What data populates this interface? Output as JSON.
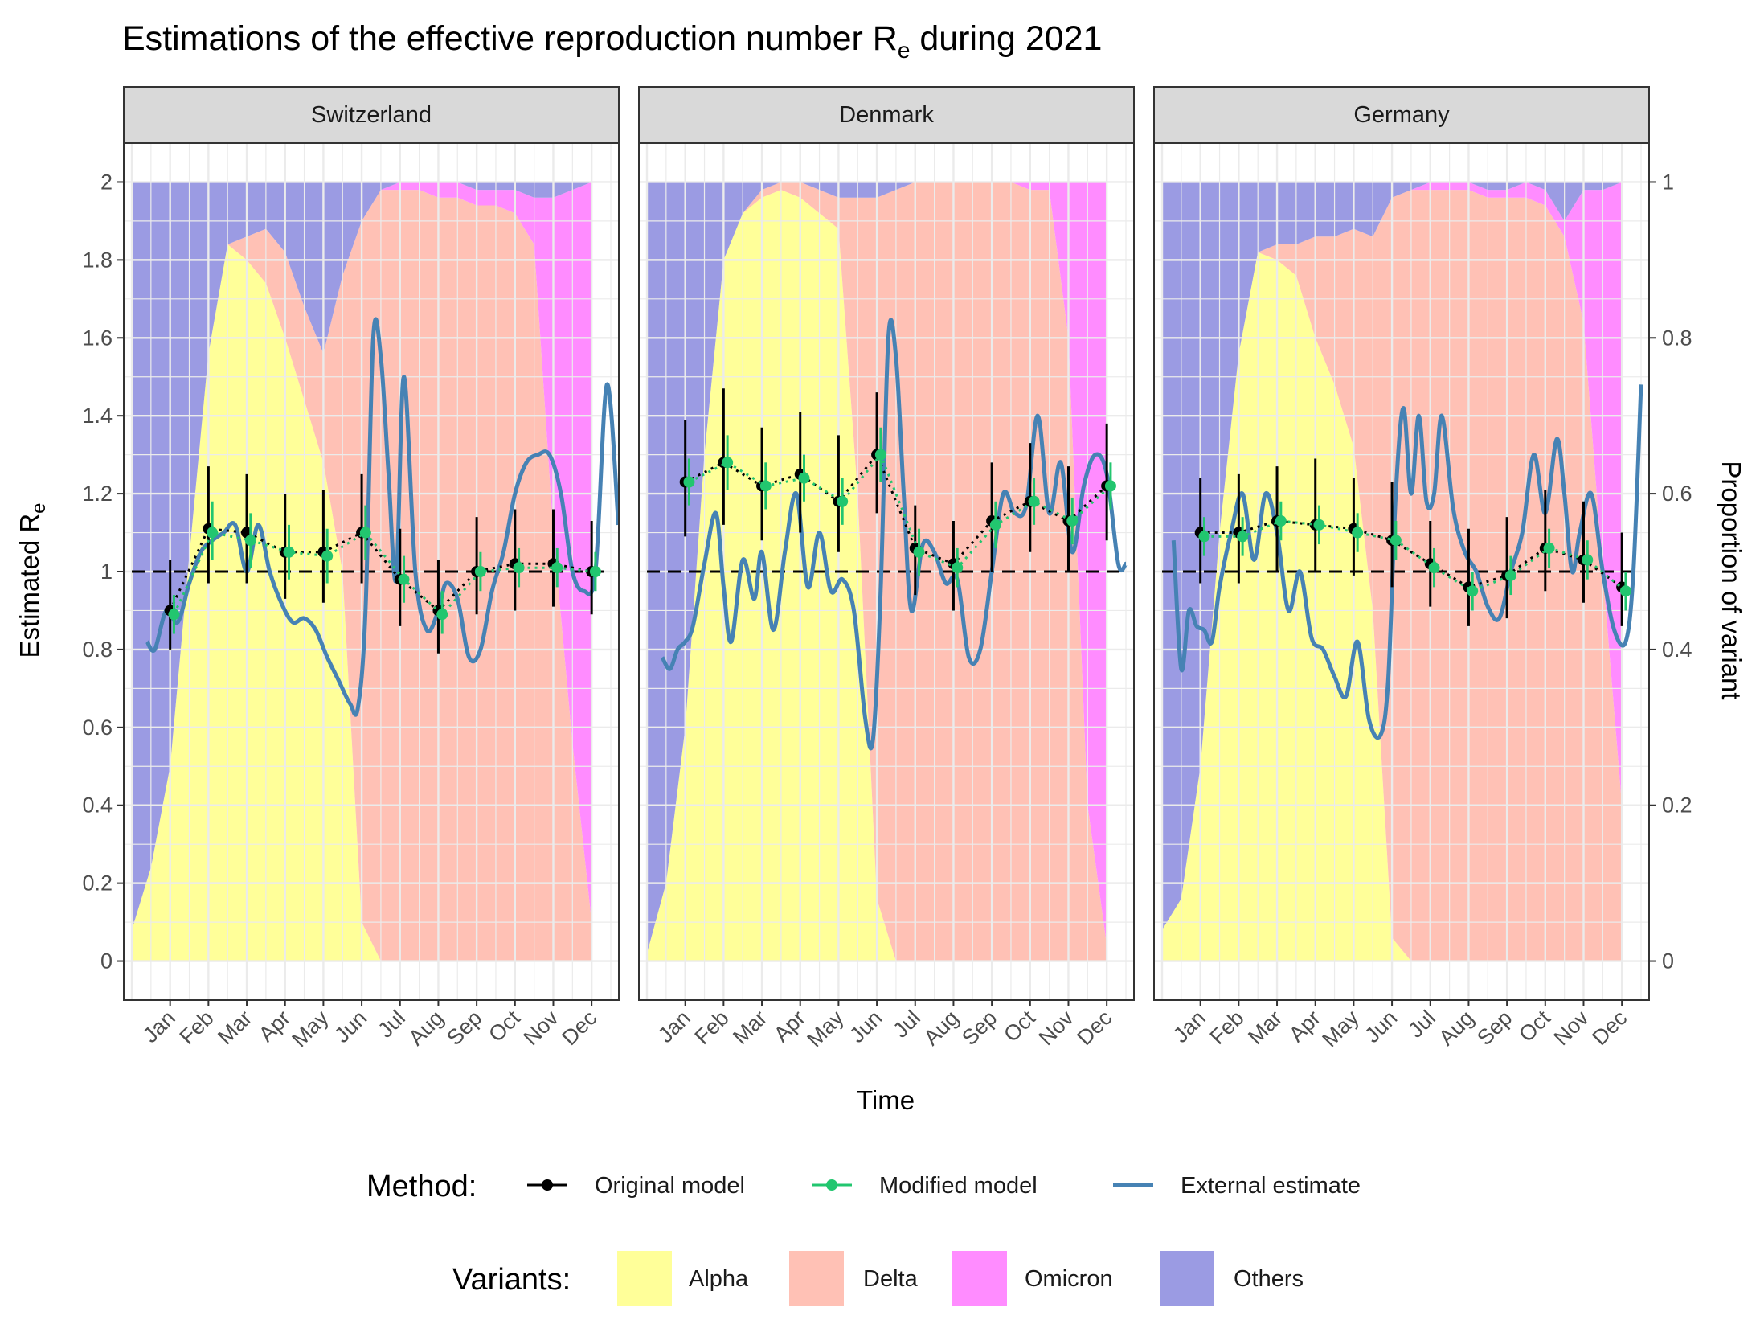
{
  "chart_data": {
    "type": "line",
    "title_main": "Estimations of the effective reproduction number R",
    "title_sub": "e",
    "title_tail": " during 2021",
    "xlabel": "Time",
    "ylabel_main": "Estimated R",
    "ylabel_sub": "e",
    "y2label": "Proportion of variant",
    "ylim": [
      -0.1,
      2.1
    ],
    "yticks": [
      "0",
      "0.2",
      "0.4",
      "0.6",
      "0.8",
      "1",
      "1.2",
      "1.4",
      "1.6",
      "1.8",
      "2"
    ],
    "y2ticks": [
      "0",
      "0.2",
      "0.4",
      "0.6",
      "0.8",
      "1"
    ],
    "x_months": [
      "Jan",
      "Feb",
      "Mar",
      "Apr",
      "May",
      "Jun",
      "Jul",
      "Aug",
      "Sep",
      "Oct",
      "Nov",
      "Dec"
    ],
    "reference_line": 1,
    "grid": true,
    "legend_method": {
      "title": "Method:",
      "items": [
        {
          "label": "Original model",
          "color": "#000000"
        },
        {
          "label": "Modified model",
          "color": "#22c66f"
        },
        {
          "label": "External estimate",
          "color": "#4682b4"
        }
      ]
    },
    "legend_variants": {
      "title": "Variants:",
      "items": [
        {
          "label": "Alpha",
          "color": "#ffff99"
        },
        {
          "label": "Delta",
          "color": "#ffc1b5"
        },
        {
          "label": "Omicron",
          "color": "#ff8cff"
        },
        {
          "label": "Others",
          "color": "#9b9be3"
        }
      ]
    },
    "panels": [
      {
        "name": "Switzerland",
        "variants": {
          "t": [
            0,
            0.5,
            1,
            1.5,
            2,
            2.5,
            3,
            3.5,
            4,
            4.5,
            5,
            5.5,
            6,
            6.5,
            7,
            7.5,
            8,
            8.5,
            9,
            9.5,
            10,
            10.5,
            11,
            11.5,
            12
          ],
          "alpha": [
            0.04,
            0.12,
            0.25,
            0.52,
            0.78,
            0.92,
            0.9,
            0.87,
            0.8,
            0.72,
            0.64,
            0.5,
            0.05,
            0,
            0,
            0,
            0,
            0,
            0,
            0,
            0,
            0,
            0,
            0,
            0
          ],
          "delta": [
            0,
            0,
            0,
            0,
            0,
            0,
            0.03,
            0.07,
            0.11,
            0.12,
            0.14,
            0.38,
            0.9,
            0.99,
            0.99,
            0.99,
            0.98,
            0.98,
            0.97,
            0.97,
            0.96,
            0.92,
            0.55,
            0.28,
            0.05
          ],
          "omicron": [
            0,
            0,
            0,
            0,
            0,
            0,
            0,
            0,
            0,
            0,
            0,
            0,
            0,
            0,
            0.01,
            0.02,
            0.02,
            0.02,
            0.02,
            0.02,
            0.03,
            0.06,
            0.43,
            0.71,
            0.95
          ]
        },
        "original": {
          "x": [
            1,
            2,
            3,
            4,
            5,
            6,
            7,
            8,
            9,
            10,
            11,
            12
          ],
          "y": [
            0.9,
            1.11,
            1.1,
            1.05,
            1.05,
            1.1,
            0.98,
            0.9,
            1.0,
            1.02,
            1.02,
            1.0
          ],
          "lo": [
            0.8,
            0.97,
            0.97,
            0.93,
            0.92,
            0.97,
            0.86,
            0.79,
            0.89,
            0.9,
            0.91,
            0.89
          ],
          "hi": [
            1.03,
            1.27,
            1.25,
            1.2,
            1.21,
            1.25,
            1.11,
            1.03,
            1.14,
            1.16,
            1.16,
            1.13
          ]
        },
        "modified": {
          "x": [
            1.1,
            2.1,
            3.1,
            4.1,
            5.1,
            6.1,
            7.1,
            8.1,
            9.1,
            10.1,
            11.1,
            12.1
          ],
          "y": [
            0.89,
            1.1,
            1.08,
            1.05,
            1.04,
            1.1,
            0.98,
            0.89,
            1.0,
            1.01,
            1.01,
            1.0
          ],
          "lo": [
            0.84,
            1.03,
            1.01,
            0.98,
            0.97,
            1.03,
            0.92,
            0.84,
            0.95,
            0.96,
            0.96,
            0.95
          ],
          "hi": [
            0.94,
            1.18,
            1.15,
            1.12,
            1.11,
            1.17,
            1.04,
            0.95,
            1.05,
            1.06,
            1.06,
            1.05
          ]
        },
        "external": {
          "x": [
            0.4,
            0.6,
            0.9,
            1.2,
            1.5,
            1.8,
            2.1,
            2.4,
            2.7,
            3.0,
            3.3,
            3.6,
            3.9,
            4.2,
            4.5,
            4.8,
            5.1,
            5.4,
            5.7,
            5.9,
            6.1,
            6.3,
            6.5,
            6.7,
            6.9,
            7.1,
            7.4,
            7.7,
            8.0,
            8.2,
            8.5,
            8.8,
            9.1,
            9.4,
            9.7,
            10.0,
            10.3,
            10.6,
            10.9,
            11.2,
            11.5,
            11.8,
            12.1,
            12.4,
            12.7
          ],
          "y": [
            0.82,
            0.8,
            0.9,
            0.87,
            0.97,
            1.05,
            1.08,
            1.1,
            1.12,
            1.0,
            1.12,
            1.0,
            0.92,
            0.87,
            0.88,
            0.85,
            0.78,
            0.72,
            0.66,
            0.65,
            0.9,
            1.6,
            1.55,
            1.25,
            0.98,
            1.5,
            1.0,
            0.85,
            0.9,
            0.97,
            0.93,
            0.78,
            0.8,
            0.95,
            1.05,
            1.2,
            1.28,
            1.3,
            1.3,
            1.2,
            1.0,
            0.95,
            1.0,
            1.48,
            1.12
          ]
        }
      },
      {
        "name": "Denmark",
        "variants": {
          "t": [
            0,
            0.5,
            1,
            1.5,
            2,
            2.5,
            3,
            3.5,
            4,
            4.5,
            5,
            5.5,
            6,
            6.5,
            7,
            7.5,
            8,
            8.5,
            9,
            9.5,
            10,
            10.5,
            11,
            11.5,
            12
          ],
          "alpha": [
            0.01,
            0.1,
            0.3,
            0.65,
            0.9,
            0.96,
            0.98,
            0.99,
            0.98,
            0.96,
            0.94,
            0.6,
            0.08,
            0,
            0,
            0,
            0,
            0,
            0,
            0,
            0,
            0,
            0,
            0,
            0
          ],
          "delta": [
            0,
            0,
            0,
            0,
            0,
            0,
            0.01,
            0.01,
            0.02,
            0.03,
            0.04,
            0.38,
            0.9,
            0.99,
            1,
            1,
            1,
            1,
            1,
            1,
            0.99,
            0.99,
            0.8,
            0.2,
            0.02
          ],
          "omicron": [
            0,
            0,
            0,
            0,
            0,
            0,
            0,
            0,
            0,
            0,
            0,
            0,
            0,
            0,
            0,
            0,
            0,
            0,
            0,
            0,
            0.01,
            0.01,
            0.2,
            0.8,
            0.98
          ]
        },
        "original": {
          "x": [
            1,
            2,
            3,
            4,
            5,
            6,
            7,
            8,
            9,
            10,
            11,
            12
          ],
          "y": [
            1.23,
            1.28,
            1.22,
            1.25,
            1.18,
            1.3,
            1.06,
            1.02,
            1.13,
            1.18,
            1.13,
            1.22
          ],
          "lo": [
            1.09,
            1.12,
            1.08,
            1.1,
            1.05,
            1.15,
            0.94,
            0.9,
            1.0,
            1.05,
            1.0,
            1.08
          ],
          "hi": [
            1.39,
            1.47,
            1.37,
            1.41,
            1.35,
            1.46,
            1.17,
            1.13,
            1.28,
            1.33,
            1.27,
            1.38
          ]
        },
        "modified": {
          "x": [
            1.1,
            2.1,
            3.1,
            4.1,
            5.1,
            6.1,
            7.1,
            8.1,
            9.1,
            10.1,
            11.1,
            12.1
          ],
          "y": [
            1.23,
            1.28,
            1.22,
            1.24,
            1.18,
            1.3,
            1.05,
            1.01,
            1.12,
            1.18,
            1.13,
            1.22
          ],
          "lo": [
            1.17,
            1.21,
            1.16,
            1.18,
            1.12,
            1.23,
            0.99,
            0.96,
            1.06,
            1.12,
            1.07,
            1.16
          ],
          "hi": [
            1.29,
            1.35,
            1.28,
            1.3,
            1.24,
            1.37,
            1.11,
            1.06,
            1.18,
            1.24,
            1.19,
            1.28
          ]
        },
        "external": {
          "x": [
            0.4,
            0.6,
            0.8,
            1.0,
            1.2,
            1.5,
            1.8,
            2.0,
            2.2,
            2.5,
            2.8,
            3.0,
            3.3,
            3.6,
            3.9,
            4.2,
            4.5,
            4.8,
            5.1,
            5.4,
            5.7,
            5.9,
            6.1,
            6.3,
            6.5,
            6.7,
            6.9,
            7.2,
            7.5,
            7.8,
            8.1,
            8.4,
            8.7,
            9.0,
            9.3,
            9.6,
            9.9,
            10.2,
            10.5,
            10.8,
            11.1,
            11.4,
            11.7,
            12.0,
            12.3,
            12.5
          ],
          "y": [
            0.78,
            0.75,
            0.8,
            0.82,
            0.86,
            1.02,
            1.15,
            0.96,
            0.82,
            1.03,
            0.93,
            1.05,
            0.85,
            1.05,
            1.2,
            0.96,
            1.1,
            0.95,
            0.98,
            0.9,
            0.62,
            0.57,
            0.95,
            1.6,
            1.55,
            1.2,
            0.9,
            1.07,
            1.05,
            0.97,
            0.98,
            0.78,
            0.8,
            1.0,
            1.2,
            1.15,
            1.17,
            1.4,
            1.15,
            1.28,
            1.05,
            1.22,
            1.3,
            1.25,
            1.02,
            1.02
          ]
        }
      },
      {
        "name": "Germany",
        "variants": {
          "t": [
            0,
            0.5,
            1,
            1.5,
            2,
            2.5,
            3,
            3.5,
            4,
            4.5,
            5,
            5.5,
            6,
            6.5,
            7,
            7.5,
            8,
            8.5,
            9,
            9.5,
            10,
            10.5,
            11,
            11.5,
            12
          ],
          "alpha": [
            0.04,
            0.08,
            0.25,
            0.55,
            0.78,
            0.91,
            0.9,
            0.88,
            0.8,
            0.74,
            0.66,
            0.45,
            0.03,
            0,
            0,
            0,
            0,
            0,
            0,
            0,
            0,
            0,
            0,
            0,
            0
          ],
          "delta": [
            0,
            0,
            0,
            0,
            0,
            0,
            0.02,
            0.04,
            0.13,
            0.19,
            0.28,
            0.48,
            0.95,
            0.99,
            0.99,
            0.99,
            0.99,
            0.98,
            0.98,
            0.98,
            0.97,
            0.93,
            0.82,
            0.5,
            0.2
          ],
          "omicron": [
            0,
            0,
            0,
            0,
            0,
            0,
            0,
            0,
            0,
            0,
            0,
            0,
            0,
            0,
            0.01,
            0.01,
            0.01,
            0.01,
            0.01,
            0.02,
            0.02,
            0.02,
            0.17,
            0.49,
            0.8
          ]
        },
        "original": {
          "x": [
            1,
            2,
            3,
            4,
            5,
            6,
            7,
            8,
            9,
            10,
            11,
            12
          ],
          "y": [
            1.1,
            1.1,
            1.13,
            1.12,
            1.11,
            1.08,
            1.02,
            0.96,
            0.99,
            1.06,
            1.03,
            0.96
          ],
          "lo": [
            0.97,
            0.97,
            1.0,
            1.0,
            0.99,
            0.96,
            0.91,
            0.86,
            0.88,
            0.95,
            0.92,
            0.86
          ],
          "hi": [
            1.24,
            1.25,
            1.27,
            1.29,
            1.24,
            1.23,
            1.13,
            1.11,
            1.14,
            1.21,
            1.18,
            1.1
          ]
        },
        "modified": {
          "x": [
            1.1,
            2.1,
            3.1,
            4.1,
            5.1,
            6.1,
            7.1,
            8.1,
            9.1,
            10.1,
            11.1,
            12.1
          ],
          "y": [
            1.09,
            1.09,
            1.13,
            1.12,
            1.1,
            1.08,
            1.01,
            0.95,
            0.99,
            1.06,
            1.03,
            0.95
          ],
          "lo": [
            1.04,
            1.04,
            1.08,
            1.07,
            1.05,
            1.03,
            0.96,
            0.9,
            0.94,
            1.01,
            0.98,
            0.9
          ],
          "hi": [
            1.14,
            1.14,
            1.18,
            1.17,
            1.15,
            1.13,
            1.06,
            1.0,
            1.04,
            1.11,
            1.08,
            1.0
          ]
        },
        "external": {
          "x": [
            0.3,
            0.5,
            0.7,
            0.9,
            1.1,
            1.3,
            1.5,
            1.8,
            2.1,
            2.4,
            2.7,
            3.0,
            3.3,
            3.6,
            3.9,
            4.2,
            4.5,
            4.8,
            5.1,
            5.4,
            5.7,
            5.9,
            6.1,
            6.3,
            6.5,
            6.7,
            6.9,
            7.1,
            7.3,
            7.6,
            7.9,
            8.2,
            8.5,
            8.8,
            9.1,
            9.4,
            9.7,
            10.0,
            10.3,
            10.5,
            10.7,
            10.9,
            11.2,
            11.5,
            11.8,
            12.1,
            12.3,
            12.5
          ],
          "y": [
            1.08,
            0.75,
            0.9,
            0.86,
            0.85,
            0.82,
            0.96,
            1.1,
            1.2,
            1.03,
            1.2,
            1.1,
            0.9,
            1.0,
            0.83,
            0.8,
            0.73,
            0.68,
            0.82,
            0.62,
            0.58,
            0.72,
            1.2,
            1.42,
            1.2,
            1.4,
            1.18,
            1.2,
            1.4,
            1.16,
            1.05,
            1.0,
            0.91,
            0.88,
            1.0,
            1.1,
            1.3,
            1.15,
            1.34,
            1.2,
            1.0,
            1.1,
            1.2,
            1.0,
            0.85,
            0.82,
            1.0,
            1.48
          ]
        }
      }
    ]
  }
}
